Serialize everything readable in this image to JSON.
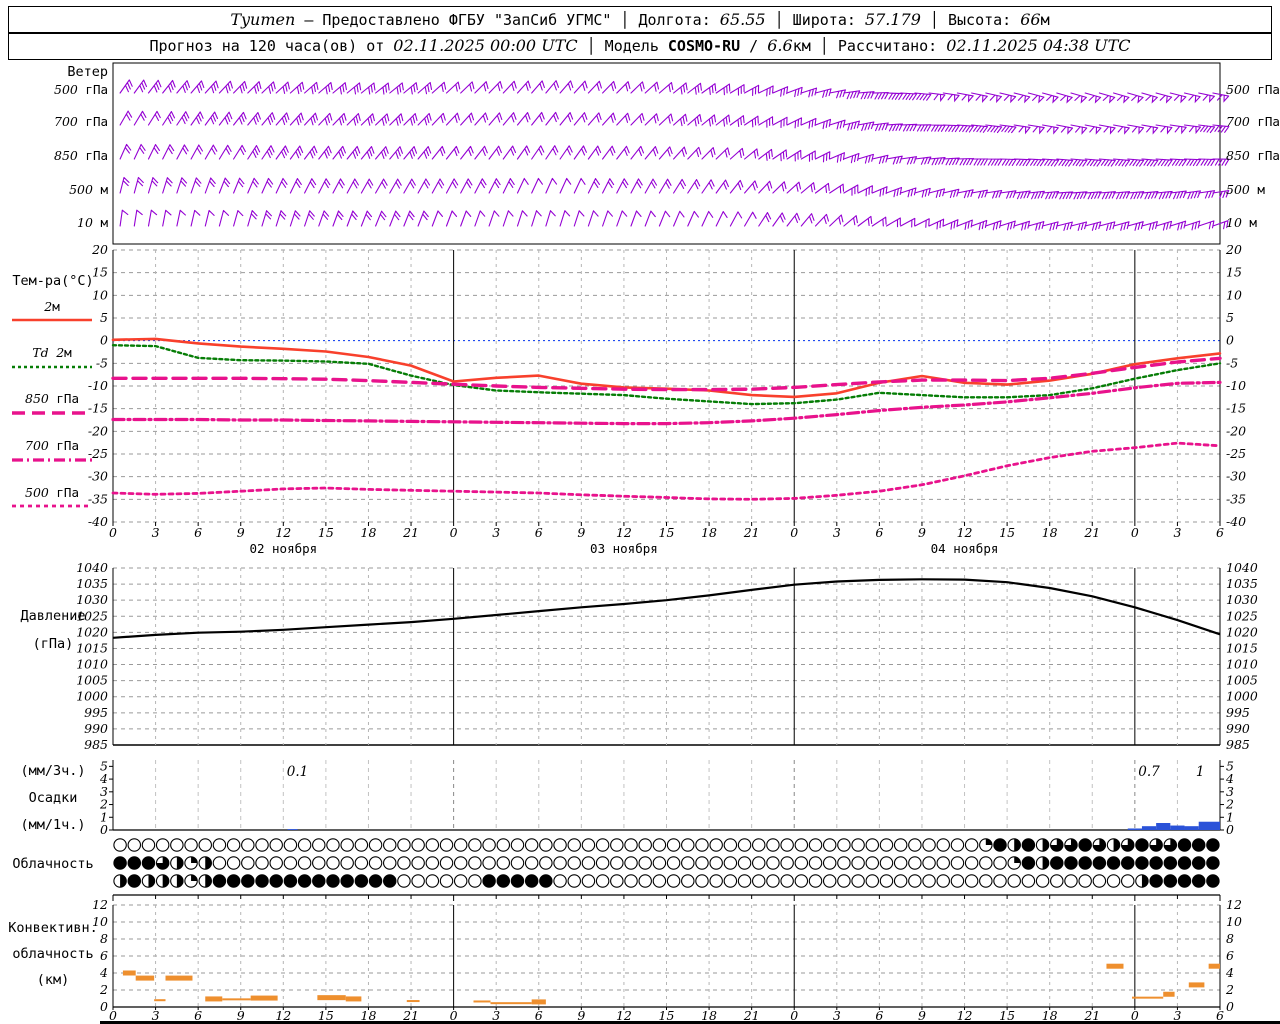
{
  "header": {
    "line1": [
      {
        "text": "Tyumen"
      },
      {
        "text": " — Предоставлено ФГБУ \"ЗапСиб УГМС\" │ Долгота: "
      },
      {
        "text": "65.55"
      },
      {
        "text": " │ Широта: "
      },
      {
        "text": "57.179"
      },
      {
        "text": " │ Высота: "
      },
      {
        "text": "66"
      },
      {
        "text": "м"
      }
    ],
    "line2": [
      {
        "text": "Прогноз на 120 часа(ов) от "
      },
      {
        "text": "02.11.2025 00:00 UTC"
      },
      {
        "text": " │ Модель "
      },
      {
        "text": "COSMO-RU"
      },
      {
        "text": " / "
      },
      {
        "text": "6.6"
      },
      {
        "text": "км │ Рассчитано: "
      },
      {
        "text": "02.11.2025 04:38 UTC"
      }
    ]
  },
  "chart_data": {
    "time_axis": {
      "start_hour": 0,
      "end_hour": 78,
      "label_step": 3,
      "day_boundaries": [
        24,
        48,
        72
      ],
      "day_labels": [
        "02 ноября",
        "03 ноября",
        "04 ноября"
      ]
    },
    "wind": {
      "type": "wind-barbs",
      "title": "Ветер",
      "color": "#9400d3",
      "levels": [
        "500 гПа",
        "700 гПа",
        "850 гПа",
        "500 м",
        "10 м"
      ],
      "approx_rows": [
        {
          "angles": [
            35,
            42,
            48,
            52,
            46,
            40,
            46,
            56,
            72,
            92,
            102,
            106,
            106,
            100
          ],
          "ticks": [
            3,
            3,
            3,
            3,
            2,
            2,
            2,
            3,
            3,
            4,
            5,
            5,
            5,
            5
          ]
        },
        {
          "angles": [
            30,
            36,
            42,
            46,
            42,
            38,
            44,
            52,
            66,
            86,
            96,
            101,
            100,
            95
          ],
          "ticks": [
            2,
            3,
            3,
            3,
            2,
            2,
            2,
            3,
            3,
            4,
            4,
            5,
            5,
            4
          ]
        },
        {
          "angles": [
            24,
            30,
            36,
            40,
            38,
            34,
            38,
            46,
            60,
            80,
            90,
            95,
            95,
            90
          ],
          "ticks": [
            2,
            2,
            3,
            3,
            2,
            2,
            2,
            2,
            3,
            3,
            4,
            4,
            4,
            4
          ]
        },
        {
          "angles": [
            14,
            20,
            26,
            30,
            28,
            24,
            28,
            36,
            50,
            70,
            80,
            86,
            85,
            80
          ],
          "ticks": [
            2,
            2,
            2,
            2,
            2,
            1,
            2,
            2,
            2,
            3,
            3,
            4,
            4,
            3
          ]
        },
        {
          "angles": [
            8,
            14,
            18,
            22,
            20,
            17,
            20,
            26,
            40,
            60,
            70,
            76,
            74,
            70
          ],
          "ticks": [
            1,
            1,
            2,
            2,
            1,
            1,
            1,
            1,
            2,
            2,
            3,
            3,
            3,
            2
          ]
        }
      ]
    },
    "temperature": {
      "type": "line",
      "title": "Тем-ра(°C)",
      "ylim": [
        -40,
        20
      ],
      "tick_step": 5,
      "x_step_hours": 3,
      "zero_line_color": "#0033ee",
      "series": [
        {
          "name": "2м",
          "color": "#f8402c",
          "dash": "solid",
          "width": 2.6,
          "values": [
            0.2,
            0.4,
            -0.6,
            -1.3,
            -1.8,
            -2.4,
            -3.6,
            -5.5,
            -9.0,
            -8.2,
            -7.7,
            -9.5,
            -10.3,
            -10.6,
            -11.0,
            -12.0,
            -12.4,
            -11.6,
            -9.3,
            -7.8,
            -9.3,
            -9.7,
            -8.8,
            -7.3,
            -5.2,
            -3.9,
            -2.8
          ]
        },
        {
          "name": "Td 2м",
          "color": "#067d06",
          "dash": "3,3",
          "width": 2.4,
          "values": [
            -1.0,
            -1.2,
            -3.8,
            -4.3,
            -4.4,
            -4.6,
            -5.1,
            -7.7,
            -9.8,
            -11.0,
            -11.4,
            -11.7,
            -12.0,
            -12.8,
            -13.4,
            -14.0,
            -13.8,
            -13.0,
            -11.5,
            -12.0,
            -12.5,
            -12.5,
            -12.0,
            -10.5,
            -8.4,
            -6.5,
            -5.0
          ]
        },
        {
          "name": "850 гПа",
          "color": "#e8128c",
          "dash": "13,7",
          "width": 3.4,
          "values": [
            -8.3,
            -8.3,
            -8.3,
            -8.3,
            -8.4,
            -8.5,
            -8.8,
            -9.2,
            -9.6,
            -10.0,
            -10.3,
            -10.5,
            -10.7,
            -10.8,
            -10.8,
            -10.7,
            -10.3,
            -9.7,
            -9.1,
            -8.7,
            -8.7,
            -8.8,
            -8.3,
            -7.2,
            -5.9,
            -4.7,
            -3.9
          ]
        },
        {
          "name": "700 гПа",
          "color": "#e8128c",
          "dash": "11,4,2,4",
          "width": 3.2,
          "values": [
            -17.4,
            -17.4,
            -17.4,
            -17.5,
            -17.5,
            -17.6,
            -17.7,
            -17.8,
            -17.9,
            -18.0,
            -18.1,
            -18.2,
            -18.3,
            -18.3,
            -18.1,
            -17.7,
            -17.1,
            -16.3,
            -15.4,
            -14.7,
            -14.2,
            -13.5,
            -12.6,
            -11.6,
            -10.4,
            -9.4,
            -9.2
          ]
        },
        {
          "name": "500 гПа",
          "color": "#e8128c",
          "dash": "4,4",
          "width": 2.8,
          "values": [
            -33.6,
            -33.9,
            -33.7,
            -33.2,
            -32.7,
            -32.5,
            -32.8,
            -33.0,
            -33.2,
            -33.4,
            -33.6,
            -34.0,
            -34.3,
            -34.6,
            -34.9,
            -35.0,
            -34.8,
            -34.1,
            -33.2,
            -31.8,
            -29.8,
            -27.6,
            -25.8,
            -24.4,
            -23.6,
            -22.6,
            -23.2
          ]
        }
      ]
    },
    "pressure": {
      "type": "line",
      "title_lines": [
        "Давление",
        "(гПа)"
      ],
      "ylim": [
        985,
        1040
      ],
      "tick_step": 5,
      "x_step_hours": 3,
      "color": "#000000",
      "values": [
        1018.3,
        1019.2,
        1019.9,
        1020.2,
        1020.8,
        1021.6,
        1022.4,
        1023.2,
        1024.2,
        1025.4,
        1026.6,
        1027.8,
        1028.8,
        1030.0,
        1031.5,
        1033.2,
        1034.8,
        1035.8,
        1036.3,
        1036.5,
        1036.4,
        1035.6,
        1033.8,
        1031.2,
        1027.8,
        1023.8,
        1019.4
      ]
    },
    "precipitation": {
      "type": "bar",
      "title_lines": [
        "(мм/3ч.)",
        "Осадки",
        "(мм/1ч.)"
      ],
      "ylim": [
        0,
        5.5
      ],
      "ticks": [
        0,
        1,
        2,
        3,
        4,
        5
      ],
      "bar_color": "#2a52d8",
      "bars": [
        {
          "h0": 12.3,
          "h1": 13.0,
          "v": 0.07
        },
        {
          "h0": 71.5,
          "h1": 72.5,
          "v": 0.12
        },
        {
          "h0": 72.5,
          "h1": 73.5,
          "v": 0.3
        },
        {
          "h0": 73.5,
          "h1": 74.5,
          "v": 0.55
        },
        {
          "h0": 74.5,
          "h1": 75.5,
          "v": 0.35
        },
        {
          "h0": 75.5,
          "h1": 76.5,
          "v": 0.3
        },
        {
          "h0": 76.5,
          "h1": 78,
          "v": 0.65
        }
      ],
      "labels": [
        {
          "text": "0.1",
          "h": 13
        },
        {
          "text": "0.7",
          "h": 73
        },
        {
          "text": "1",
          "h": 76.6
        }
      ]
    },
    "cloudiness": {
      "type": "symbol-grid",
      "title": "Облачность",
      "rows": [
        [
          0,
          0,
          0,
          0,
          0,
          0,
          0,
          0,
          0,
          0,
          0,
          0,
          0,
          0,
          0,
          0,
          0,
          0,
          0,
          0,
          0,
          0,
          0,
          0,
          0,
          0,
          0,
          0,
          0,
          0,
          0,
          0,
          0,
          0,
          0,
          0,
          0,
          0,
          0,
          0,
          0,
          0,
          0,
          0,
          0,
          0,
          0,
          0,
          0,
          0,
          0,
          0,
          0,
          0,
          0,
          0,
          0,
          0,
          0,
          0,
          0,
          0.25,
          1,
          0.5,
          1,
          0.5,
          0.75,
          0.75,
          1,
          0.75,
          0.5,
          0.75,
          1,
          0.75,
          0.75,
          1,
          1,
          1
        ],
        [
          1,
          1,
          1,
          0.75,
          0.5,
          0.25,
          0.5,
          0,
          0,
          0,
          0,
          0,
          0,
          0,
          0,
          0,
          0,
          0,
          0,
          0,
          0,
          0,
          0,
          0,
          0,
          0,
          0,
          0,
          0,
          0,
          0,
          0,
          0,
          0,
          0,
          0,
          0,
          0,
          0,
          0,
          0,
          0,
          0,
          0,
          0,
          0,
          0,
          0,
          0,
          0,
          0,
          0,
          0,
          0,
          0,
          0,
          0,
          0,
          0,
          0,
          0,
          0,
          0,
          0.25,
          1,
          0.5,
          1,
          1,
          1,
          1,
          1,
          1,
          1,
          1,
          1,
          1,
          1,
          1
        ],
        [
          0.5,
          1,
          0.5,
          0.5,
          0.5,
          0.25,
          0.5,
          1,
          1,
          1,
          1,
          1,
          1,
          1,
          1,
          1,
          1,
          1,
          1,
          1,
          0,
          0,
          0,
          0,
          0,
          0,
          1,
          1,
          1,
          1,
          1,
          0,
          0,
          0,
          0,
          0,
          0,
          0,
          0,
          0,
          0,
          0,
          0,
          0,
          0,
          0,
          0,
          0,
          0,
          0,
          0,
          0,
          0,
          0,
          0,
          0,
          0,
          0,
          0,
          0,
          0,
          0,
          0,
          0,
          0,
          0,
          0,
          0,
          0,
          0,
          0,
          0,
          0.5,
          1,
          1,
          1,
          1,
          1
        ]
      ]
    },
    "convective_clouds": {
      "type": "segments",
      "title_lines": [
        "Конвективн.",
        "облачность",
        "(км)"
      ],
      "ylim": [
        0,
        12
      ],
      "tick_step": 2,
      "color": "#ee8f2e",
      "segments": [
        {
          "h0": 0.7,
          "h1": 1.6,
          "km": 4.0,
          "thick": true
        },
        {
          "h0": 1.6,
          "h1": 2.9,
          "km": 3.4,
          "thick": true
        },
        {
          "h0": 2.9,
          "h1": 3.7,
          "km": 0.8,
          "thick": false
        },
        {
          "h0": 3.7,
          "h1": 5.6,
          "km": 3.4,
          "thick": true
        },
        {
          "h0": 6.5,
          "h1": 7.7,
          "km": 0.95,
          "thick": true
        },
        {
          "h0": 7.7,
          "h1": 9.7,
          "km": 0.9,
          "thick": false
        },
        {
          "h0": 9.7,
          "h1": 11.6,
          "km": 1.05,
          "thick": true
        },
        {
          "h0": 14.4,
          "h1": 16.4,
          "km": 1.1,
          "thick": true
        },
        {
          "h0": 16.4,
          "h1": 17.5,
          "km": 0.95,
          "thick": true
        },
        {
          "h0": 20.7,
          "h1": 21.6,
          "km": 0.7,
          "thick": false
        },
        {
          "h0": 25.4,
          "h1": 26.6,
          "km": 0.65,
          "thick": false
        },
        {
          "h0": 26.6,
          "h1": 29.5,
          "km": 0.45,
          "thick": false
        },
        {
          "h0": 29.5,
          "h1": 30.5,
          "km": 0.6,
          "thick": true
        },
        {
          "h0": 70.0,
          "h1": 71.2,
          "km": 4.8,
          "thick": true
        },
        {
          "h0": 71.8,
          "h1": 74.0,
          "km": 1.1,
          "thick": false
        },
        {
          "h0": 74.0,
          "h1": 74.8,
          "km": 1.5,
          "thick": true
        },
        {
          "h0": 75.8,
          "h1": 76.9,
          "km": 2.6,
          "thick": true
        },
        {
          "h0": 77.2,
          "h1": 78.0,
          "km": 4.8,
          "thick": true
        }
      ]
    }
  }
}
